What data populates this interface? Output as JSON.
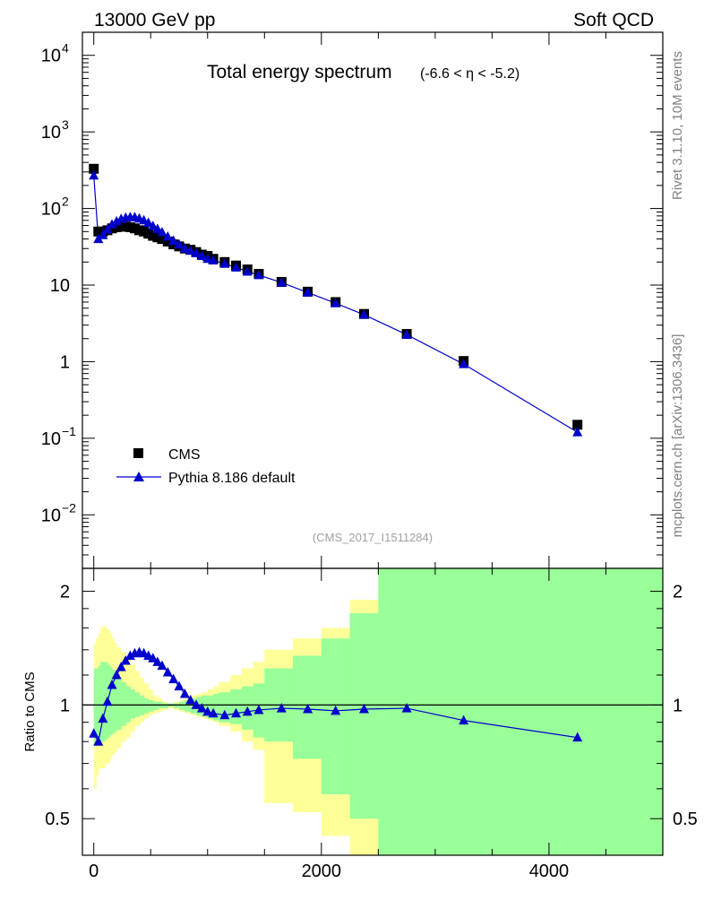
{
  "header": {
    "left": "13000 GeV pp",
    "right": "Soft QCD"
  },
  "side_text": {
    "rivet": "Rivet 3.1.10,  10M events",
    "url": "mcplots.cern.ch [arXiv:1306.3436]"
  },
  "chart_data": [
    {
      "type": "scatter",
      "title": "Total energy spectrum",
      "title_suffix": "(-6.6 < η < -5.2)",
      "analysis_tag": "(CMS_2017_I1511284)",
      "xlim": [
        -100,
        5000
      ],
      "ylim": [
        0.002,
        20000
      ],
      "yscale": "log",
      "ytick_values": [
        0.01,
        0.1,
        1,
        10,
        100,
        1000,
        10000
      ],
      "ytick_labels": [
        {
          "base": "10",
          "exp": "−2"
        },
        {
          "base": "10",
          "exp": "−1"
        },
        {
          "base": "1",
          "exp": ""
        },
        {
          "base": "10",
          "exp": ""
        },
        {
          "base": "10",
          "exp": "2"
        },
        {
          "base": "10",
          "exp": "3"
        },
        {
          "base": "10",
          "exp": "4"
        }
      ],
      "legend": {
        "placement": "lower-left",
        "entries": [
          "CMS",
          "Pythia 8.186 default"
        ]
      },
      "series": [
        {
          "name": "CMS",
          "marker": "square",
          "color": "#000000",
          "x": [
            0,
            40,
            80,
            120,
            160,
            200,
            240,
            280,
            320,
            360,
            400,
            440,
            480,
            520,
            560,
            600,
            650,
            700,
            750,
            800,
            850,
            900,
            950,
            1000,
            1050,
            1150,
            1250,
            1350,
            1450,
            1650,
            1880,
            2125,
            2375,
            2750,
            3250,
            4250
          ],
          "y": [
            330,
            50,
            50,
            52,
            55,
            57,
            58,
            58,
            57,
            55,
            52,
            50,
            47,
            44,
            42,
            40,
            37,
            34,
            32,
            30,
            29,
            27,
            25,
            24,
            22,
            20,
            18,
            16,
            14,
            11,
            8.2,
            6.0,
            4.2,
            2.3,
            1.02,
            0.15
          ]
        },
        {
          "name": "Pythia 8.186 default",
          "marker": "triangle",
          "color": "#0000cc",
          "x": [
            0,
            40,
            80,
            120,
            160,
            200,
            240,
            280,
            320,
            360,
            400,
            440,
            480,
            520,
            560,
            600,
            650,
            700,
            750,
            800,
            850,
            900,
            950,
            1000,
            1050,
            1150,
            1250,
            1350,
            1450,
            1650,
            1880,
            2125,
            2375,
            2750,
            3250,
            4250
          ],
          "y": [
            270,
            40,
            45,
            53,
            62,
            68,
            73,
            76,
            77,
            77,
            74,
            70,
            65,
            59,
            54,
            49,
            43,
            38,
            34,
            30,
            28,
            26,
            24,
            22,
            21,
            19,
            17,
            15,
            13.5,
            10.8,
            8.0,
            5.8,
            4.1,
            2.25,
            0.93,
            0.12
          ]
        }
      ]
    },
    {
      "type": "scatter",
      "ylabel": "Ratio to CMS",
      "xlim": [
        -100,
        5000
      ],
      "ylim": [
        0.4,
        2.3
      ],
      "yscale": "log",
      "ytick_values": [
        0.5,
        1,
        2
      ],
      "ytick_labels": [
        "0.5",
        "1",
        "2"
      ],
      "xtick_values": [
        0,
        2000,
        4000
      ],
      "xtick_labels": [
        "0",
        "2000",
        "4000"
      ],
      "reference_line": 1,
      "bands": {
        "edges": [
          0,
          20,
          40,
          60,
          80,
          100,
          120,
          140,
          160,
          180,
          200,
          240,
          280,
          320,
          360,
          400,
          440,
          480,
          520,
          560,
          600,
          650,
          700,
          750,
          800,
          850,
          900,
          950,
          1000,
          1050,
          1100,
          1200,
          1300,
          1400,
          1500,
          1750,
          2000,
          2250,
          2500,
          3000,
          3500,
          5000
        ],
        "total_low": [
          0.6,
          0.65,
          0.68,
          0.68,
          0.68,
          0.7,
          0.7,
          0.72,
          0.74,
          0.75,
          0.77,
          0.8,
          0.82,
          0.85,
          0.88,
          0.9,
          0.92,
          0.94,
          0.95,
          0.96,
          0.97,
          0.98,
          0.97,
          0.96,
          0.95,
          0.94,
          0.93,
          0.92,
          0.91,
          0.9,
          0.88,
          0.85,
          0.8,
          0.76,
          0.55,
          0.52,
          0.45,
          0.4,
          0.36,
          0.36,
          0.36
        ],
        "total_high": [
          1.45,
          1.5,
          1.55,
          1.6,
          1.62,
          1.6,
          1.58,
          1.55,
          1.5,
          1.46,
          1.42,
          1.38,
          1.33,
          1.28,
          1.23,
          1.18,
          1.14,
          1.1,
          1.06,
          1.04,
          1.02,
          1.01,
          1.02,
          1.03,
          1.04,
          1.06,
          1.07,
          1.08,
          1.1,
          1.12,
          1.15,
          1.2,
          1.25,
          1.3,
          1.4,
          1.5,
          1.6,
          1.9,
          2.25,
          2.5,
          2.5
        ],
        "stat_low": [
          0.78,
          0.8,
          0.8,
          0.8,
          0.8,
          0.81,
          0.82,
          0.83,
          0.84,
          0.85,
          0.86,
          0.88,
          0.9,
          0.92,
          0.93,
          0.94,
          0.95,
          0.96,
          0.97,
          0.98,
          0.98,
          0.99,
          0.98,
          0.97,
          0.96,
          0.95,
          0.94,
          0.93,
          0.92,
          0.91,
          0.9,
          0.89,
          0.86,
          0.82,
          0.8,
          0.72,
          0.58,
          0.5,
          0.36,
          0.36,
          0.36
        ],
        "stat_high": [
          1.25,
          1.25,
          1.27,
          1.3,
          1.3,
          1.3,
          1.28,
          1.26,
          1.24,
          1.21,
          1.18,
          1.15,
          1.12,
          1.1,
          1.08,
          1.06,
          1.04,
          1.03,
          1.02,
          1.02,
          1.01,
          1.01,
          1.01,
          1.02,
          1.03,
          1.04,
          1.05,
          1.06,
          1.06,
          1.07,
          1.08,
          1.1,
          1.12,
          1.14,
          1.25,
          1.35,
          1.5,
          1.75,
          2.5,
          2.5,
          2.5
        ],
        "colors": {
          "total": "#ffff99",
          "stat": "#99ff99"
        }
      },
      "series": [
        {
          "name": "Pythia 8.186 default",
          "marker": "triangle",
          "color": "#0000cc",
          "x": [
            0,
            40,
            80,
            120,
            160,
            200,
            240,
            280,
            320,
            360,
            400,
            440,
            480,
            520,
            560,
            600,
            650,
            700,
            750,
            800,
            850,
            900,
            950,
            1000,
            1050,
            1150,
            1250,
            1350,
            1450,
            1650,
            1880,
            2125,
            2375,
            2750,
            3250,
            4250
          ],
          "y": [
            0.84,
            0.8,
            0.92,
            1.02,
            1.13,
            1.2,
            1.26,
            1.31,
            1.35,
            1.37,
            1.38,
            1.37,
            1.35,
            1.33,
            1.3,
            1.27,
            1.22,
            1.17,
            1.12,
            1.07,
            1.03,
            1.0,
            0.98,
            0.96,
            0.95,
            0.94,
            0.95,
            0.96,
            0.97,
            0.98,
            0.975,
            0.965,
            0.975,
            0.98,
            0.91,
            0.82
          ]
        }
      ]
    }
  ]
}
